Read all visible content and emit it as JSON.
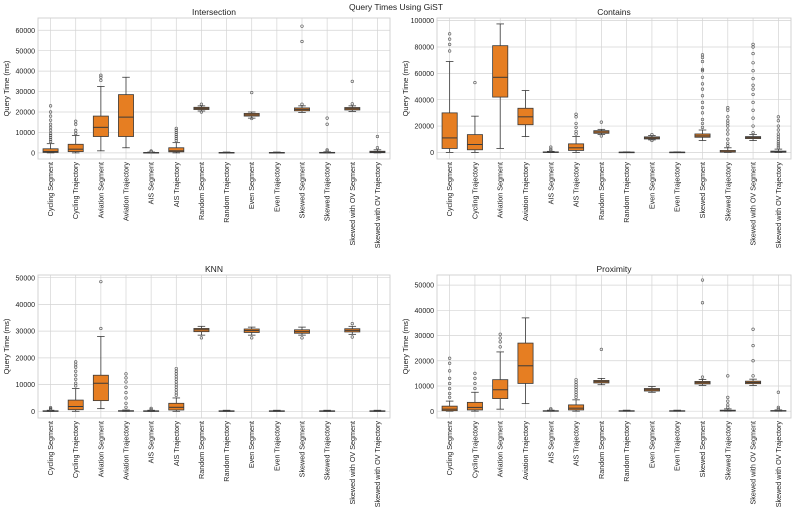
{
  "figure": {
    "title": "Query Times Using GiST"
  },
  "colors": {
    "box": "#e67e22",
    "box_edge": "#3a3a3a",
    "grid": "#d4d4d4",
    "axis": "#cfcfcf",
    "flier": "#555555"
  },
  "chart_data": [
    {
      "type": "box",
      "title": "Intersection",
      "ylabel": "Query Time (ms)",
      "ylim": [
        -3000,
        66000
      ],
      "yticks": [
        0,
        10000,
        20000,
        30000,
        40000,
        50000,
        60000
      ],
      "ytick_labels": [
        "0",
        "10000",
        "20000",
        "30000",
        "40000",
        "50000",
        "60000"
      ],
      "grid": true,
      "categories": [
        "Cycling Segment",
        "Cycling Trajectory",
        "Aviation Segment",
        "Aviation Trajectory",
        "AIS Segment",
        "AIS Trajectory",
        "Random Segment",
        "Random Trajectory",
        "Even Segment",
        "Even Trajectory",
        "Skewed Segment",
        "Skewed Trajectory",
        "Skewed with OV Segment",
        "Skewed with OV Trajectory"
      ],
      "boxes": [
        {
          "lw": 0,
          "q1": 200,
          "med": 700,
          "q3": 2000,
          "hw": 4500,
          "fliers": [
            5500,
            6500,
            7500,
            8500,
            9500,
            11000,
            12500,
            14000,
            16000,
            18000,
            20000,
            23000
          ]
        },
        {
          "lw": 0,
          "q1": 600,
          "med": 1800,
          "q3": 4200,
          "hw": 8500,
          "fliers": [
            9500,
            11000,
            14000,
            15500
          ]
        },
        {
          "lw": 1000,
          "q1": 8000,
          "med": 12500,
          "q3": 18000,
          "hw": 32500,
          "fliers": [
            35500,
            37000,
            38000
          ]
        },
        {
          "lw": 2500,
          "q1": 8000,
          "med": 17500,
          "q3": 28500,
          "hw": 37000,
          "fliers": []
        },
        {
          "lw": 0,
          "q1": 50,
          "med": 100,
          "q3": 200,
          "hw": 400,
          "fliers": [
            600,
            900
          ]
        },
        {
          "lw": 0,
          "q1": 500,
          "med": 1000,
          "q3": 2500,
          "hw": 5000,
          "fliers": [
            6000,
            7000,
            8000,
            9000,
            10000,
            11000,
            12000
          ]
        },
        {
          "lw": 20500,
          "q1": 21200,
          "med": 21800,
          "q3": 22300,
          "hw": 23000,
          "fliers": [
            20000,
            23800
          ]
        },
        {
          "lw": 0,
          "q1": 50,
          "med": 100,
          "q3": 200,
          "hw": 400,
          "fliers": []
        },
        {
          "lw": 17000,
          "q1": 18000,
          "med": 18600,
          "q3": 19300,
          "hw": 20000,
          "fliers": [
            16800,
            29500
          ]
        },
        {
          "lw": 0,
          "q1": 50,
          "med": 100,
          "q3": 200,
          "hw": 400,
          "fliers": []
        },
        {
          "lw": 19800,
          "q1": 20600,
          "med": 21300,
          "q3": 22000,
          "hw": 23000,
          "fliers": [
            23800,
            54500,
            62000
          ]
        },
        {
          "lw": 0,
          "q1": 50,
          "med": 100,
          "q3": 250,
          "hw": 500,
          "fliers": [
            900,
            1500,
            14000,
            17000
          ]
        },
        {
          "lw": 20300,
          "q1": 21000,
          "med": 21600,
          "q3": 22200,
          "hw": 23000,
          "fliers": [
            24000,
            35000
          ]
        },
        {
          "lw": 0,
          "q1": 100,
          "med": 400,
          "q3": 800,
          "hw": 1500,
          "fliers": [
            2500,
            8000
          ]
        }
      ]
    },
    {
      "type": "box",
      "title": "Contains",
      "ylabel": "Query Time (ms)",
      "ylim": [
        -5000,
        102000
      ],
      "yticks": [
        0,
        20000,
        40000,
        60000,
        80000,
        100000
      ],
      "ytick_labels": [
        "0",
        "20000",
        "40000",
        "60000",
        "80000",
        "100000"
      ],
      "grid": true,
      "categories": [
        "Cycling Segment",
        "Cycling Trajectory",
        "Aviation Segment",
        "Aviation Trajectory",
        "AIS Segment",
        "AIS Trajectory",
        "Random Segment",
        "Random Trajectory",
        "Even Segment",
        "Even Trajectory",
        "Skewed Segment",
        "Skewed Trajectory",
        "Skewed with OV Segment",
        "Skewed with OV Trajectory"
      ],
      "boxes": [
        {
          "lw": 0,
          "q1": 3000,
          "med": 11000,
          "q3": 30000,
          "hw": 69000,
          "fliers": [
            77000,
            82000,
            86000,
            90000
          ]
        },
        {
          "lw": 0,
          "q1": 2000,
          "med": 6000,
          "q3": 13500,
          "hw": 27500,
          "fliers": [
            53000
          ]
        },
        {
          "lw": 3000,
          "q1": 42000,
          "med": 57000,
          "q3": 81000,
          "hw": 97500,
          "fliers": []
        },
        {
          "lw": 12000,
          "q1": 21000,
          "med": 27000,
          "q3": 33500,
          "hw": 47000,
          "fliers": []
        },
        {
          "lw": 0,
          "q1": 80,
          "med": 200,
          "q3": 400,
          "hw": 800,
          "fliers": [
            1500,
            2500,
            4000
          ]
        },
        {
          "lw": 0,
          "q1": 1500,
          "med": 3500,
          "q3": 6500,
          "hw": 12000,
          "fliers": [
            14000,
            16000,
            19000,
            22000,
            27000,
            29000
          ]
        },
        {
          "lw": 13500,
          "q1": 14500,
          "med": 15500,
          "q3": 16500,
          "hw": 17500,
          "fliers": [
            12500,
            23000
          ]
        },
        {
          "lw": 0,
          "q1": 50,
          "med": 100,
          "q3": 200,
          "hw": 400,
          "fliers": []
        },
        {
          "lw": 9500,
          "q1": 10200,
          "med": 11000,
          "q3": 11800,
          "hw": 12800,
          "fliers": [
            9000,
            13500
          ]
        },
        {
          "lw": 0,
          "q1": 50,
          "med": 100,
          "q3": 200,
          "hw": 400,
          "fliers": []
        },
        {
          "lw": 9000,
          "q1": 11500,
          "med": 12500,
          "q3": 14000,
          "hw": 17000,
          "fliers": [
            19000,
            22000,
            25000,
            30000,
            34000,
            38000,
            43000,
            48000,
            52000,
            57000,
            62000,
            63000,
            69000,
            72000,
            74000
          ]
        },
        {
          "lw": 0,
          "q1": 200,
          "med": 500,
          "q3": 1500,
          "hw": 3500,
          "fliers": [
            5000,
            7000,
            10000,
            14000,
            17000,
            20000,
            22000,
            24000,
            27000,
            32000,
            34000
          ]
        },
        {
          "lw": 9000,
          "q1": 10500,
          "med": 11200,
          "q3": 12000,
          "hw": 13500,
          "fliers": [
            15000,
            20000,
            26000,
            32000,
            38000,
            44000,
            48000,
            51000,
            56000,
            62000,
            68000,
            75000,
            80000,
            82000
          ]
        },
        {
          "lw": 0,
          "q1": 100,
          "med": 400,
          "q3": 1000,
          "hw": 2500,
          "fliers": [
            3500,
            5000,
            6500,
            8000,
            10000,
            12000,
            14000,
            17000,
            20000,
            24000,
            27000
          ]
        }
      ]
    },
    {
      "type": "box",
      "title": "KNN",
      "ylabel": "Query Time (ms)",
      "ylim": [
        -2500,
        51000
      ],
      "yticks": [
        0,
        10000,
        20000,
        30000,
        40000,
        50000
      ],
      "ytick_labels": [
        "0",
        "10000",
        "20000",
        "30000",
        "40000",
        "50000"
      ],
      "grid": true,
      "categories": [
        "Cycling Segment",
        "Cycling Trajectory",
        "Aviation Segment",
        "Aviation Trajectory",
        "AIS Segment",
        "AIS Trajectory",
        "Random Segment",
        "Random Trajectory",
        "Even Segment",
        "Even Trajectory",
        "Skewed Segment",
        "Skewed Trajectory",
        "Skewed with OV Segment",
        "Skewed with OV Trajectory"
      ],
      "boxes": [
        {
          "lw": 0,
          "q1": 30,
          "med": 80,
          "q3": 200,
          "hw": 400,
          "fliers": [
            700,
            1000,
            1400
          ]
        },
        {
          "lw": 0,
          "q1": 600,
          "med": 1800,
          "q3": 4200,
          "hw": 8500,
          "fliers": [
            9500,
            10500,
            12000,
            13500,
            15000,
            16500,
            17500,
            18500
          ]
        },
        {
          "lw": 1000,
          "q1": 4000,
          "med": 10500,
          "q3": 13500,
          "hw": 28000,
          "fliers": [
            31000,
            48500
          ]
        },
        {
          "lw": 0,
          "q1": 30,
          "med": 100,
          "q3": 250,
          "hw": 500,
          "fliers": [
            1500,
            3000,
            5000,
            7000,
            9000,
            11000,
            12500,
            14000
          ]
        },
        {
          "lw": 0,
          "q1": 30,
          "med": 80,
          "q3": 200,
          "hw": 400,
          "fliers": [
            700,
            1100
          ]
        },
        {
          "lw": 0,
          "q1": 500,
          "med": 1500,
          "q3": 3000,
          "hw": 5000,
          "fliers": [
            6000,
            7000,
            8000,
            9000,
            10000,
            11000,
            12000,
            13000,
            14000,
            15000,
            16000
          ]
        },
        {
          "lw": 28500,
          "q1": 29800,
          "med": 30500,
          "q3": 31000,
          "hw": 31800,
          "fliers": [
            27500
          ]
        },
        {
          "lw": 0,
          "q1": 30,
          "med": 80,
          "q3": 200,
          "hw": 400,
          "fliers": []
        },
        {
          "lw": 28500,
          "q1": 29500,
          "med": 30200,
          "q3": 30800,
          "hw": 31500,
          "fliers": [
            27500
          ]
        },
        {
          "lw": 0,
          "q1": 30,
          "med": 80,
          "q3": 200,
          "hw": 400,
          "fliers": []
        },
        {
          "lw": 28500,
          "q1": 29200,
          "med": 29800,
          "q3": 30500,
          "hw": 31500,
          "fliers": [
            27500
          ]
        },
        {
          "lw": 0,
          "q1": 30,
          "med": 80,
          "q3": 200,
          "hw": 400,
          "fliers": []
        },
        {
          "lw": 28800,
          "q1": 29700,
          "med": 30300,
          "q3": 30900,
          "hw": 31800,
          "fliers": [
            27800,
            32800
          ]
        },
        {
          "lw": 0,
          "q1": 30,
          "med": 80,
          "q3": 200,
          "hw": 400,
          "fliers": []
        }
      ]
    },
    {
      "type": "box",
      "title": "Proximity",
      "ylabel": "Query Time (ms)",
      "ylim": [
        -2700,
        54000
      ],
      "yticks": [
        0,
        10000,
        20000,
        30000,
        40000,
        50000
      ],
      "ytick_labels": [
        "0",
        "10000",
        "20000",
        "30000",
        "40000",
        "50000"
      ],
      "grid": true,
      "categories": [
        "Cycling Segment",
        "Cycling Trajectory",
        "Aviation Segment",
        "Aviation Trajectory",
        "AIS Segment",
        "AIS Trajectory",
        "Random Segment",
        "Random Trajectory",
        "Even Segment",
        "Even Trajectory",
        "Skewed Segment",
        "Skewed Trajectory",
        "Skewed with OV Segment",
        "Skewed with OV Trajectory"
      ],
      "boxes": [
        {
          "lw": 0,
          "q1": 200,
          "med": 800,
          "q3": 2000,
          "hw": 4000,
          "fliers": [
            5500,
            7000,
            9000,
            11000,
            13000,
            16000,
            19000,
            21000
          ]
        },
        {
          "lw": 0,
          "q1": 500,
          "med": 1500,
          "q3": 3500,
          "hw": 7500,
          "fliers": [
            9000,
            11000,
            13000,
            15000
          ]
        },
        {
          "lw": 800,
          "q1": 5000,
          "med": 8500,
          "q3": 12500,
          "hw": 23500,
          "fliers": [
            25500,
            27500,
            29000,
            30500
          ]
        },
        {
          "lw": 3000,
          "q1": 11000,
          "med": 18000,
          "q3": 27000,
          "hw": 37000,
          "fliers": []
        },
        {
          "lw": 0,
          "q1": 30,
          "med": 80,
          "q3": 200,
          "hw": 400,
          "fliers": [
            700,
            1000
          ]
        },
        {
          "lw": 0,
          "q1": 500,
          "med": 1200,
          "q3": 2500,
          "hw": 4500,
          "fliers": [
            5500,
            6500,
            7500,
            8500,
            9500,
            10500,
            11500,
            12500
          ]
        },
        {
          "lw": 10500,
          "q1": 11200,
          "med": 11700,
          "q3": 12200,
          "hw": 13000,
          "fliers": [
            24500
          ]
        },
        {
          "lw": 0,
          "q1": 30,
          "med": 80,
          "q3": 200,
          "hw": 400,
          "fliers": []
        },
        {
          "lw": 7500,
          "q1": 8000,
          "med": 8500,
          "q3": 9000,
          "hw": 9800,
          "fliers": []
        },
        {
          "lw": 0,
          "q1": 30,
          "med": 80,
          "q3": 200,
          "hw": 400,
          "fliers": []
        },
        {
          "lw": 10200,
          "q1": 10800,
          "med": 11300,
          "q3": 11800,
          "hw": 12600,
          "fliers": [
            13500,
            43000,
            52000
          ]
        },
        {
          "lw": 0,
          "q1": 50,
          "med": 200,
          "q3": 400,
          "hw": 900,
          "fliers": [
            1500,
            2500,
            4000,
            5500,
            14000
          ]
        },
        {
          "lw": 10200,
          "q1": 10900,
          "med": 11400,
          "q3": 11900,
          "hw": 12700,
          "fliers": [
            14000,
            20000,
            26000,
            32500
          ]
        },
        {
          "lw": 0,
          "q1": 30,
          "med": 100,
          "q3": 250,
          "hw": 500,
          "fliers": [
            900,
            1500,
            7500
          ]
        }
      ]
    }
  ]
}
